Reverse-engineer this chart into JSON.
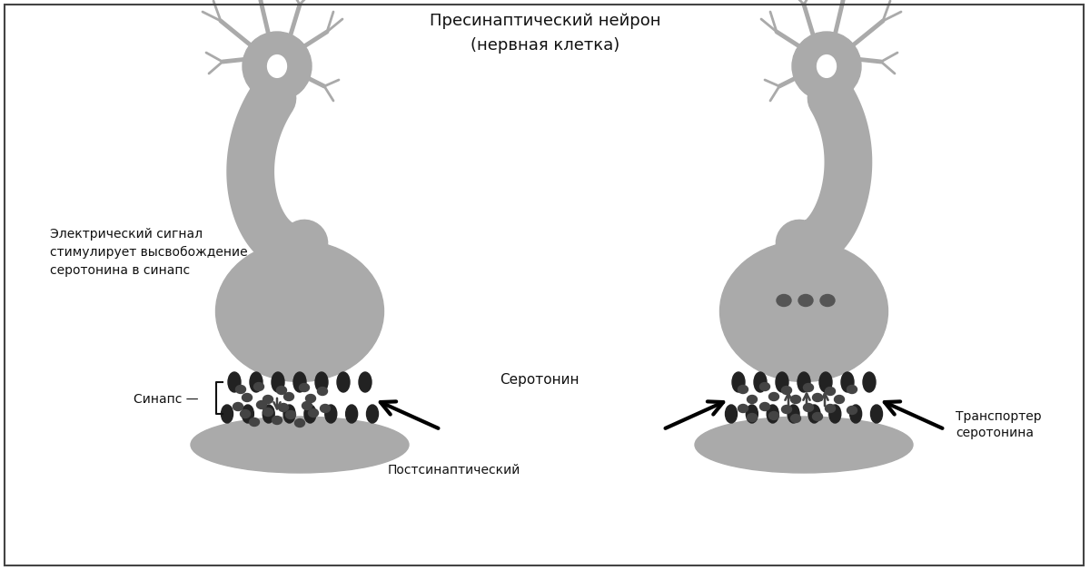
{
  "bg_color": "#ffffff",
  "neuron_color": "#aaaaaa",
  "dot_color": "#444444",
  "receptor_color": "#222222",
  "text_color": "#111111",
  "title_text": "Пресинаптический нейрон",
  "title_text2": "(нервная клетка)",
  "label_electric": "Электрический сигнал\nстимулирует высвобождение\nсеротонина в синапс",
  "label_synapse": "Синапс",
  "label_serotonin": "Серотонин",
  "label_postsynaptic": "Постсинаптический",
  "label_transporter": "Транспортер\nсеротонина"
}
